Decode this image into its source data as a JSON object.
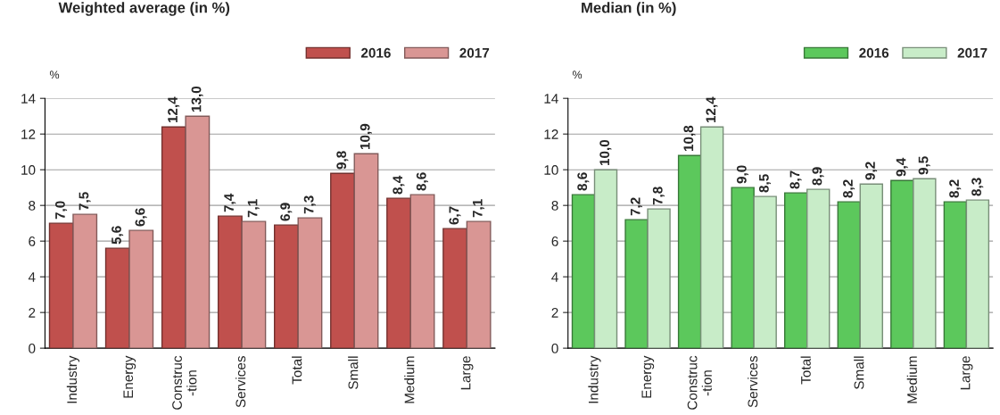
{
  "chart_data": [
    {
      "type": "bar",
      "title": "Weighted average (in %)",
      "ylabel": "%",
      "categories": [
        "Industry",
        "Energy",
        "Construc\n-tion",
        "Services",
        "Total",
        "Small",
        "Medium",
        "Large"
      ],
      "series": [
        {
          "name": "2016",
          "color": "#c0504d",
          "values": [
            7.0,
            5.6,
            12.4,
            7.4,
            6.9,
            9.8,
            8.4,
            6.7
          ],
          "value_labels": [
            "7,0",
            "5,6",
            "12,4",
            "7,4",
            "6,9",
            "9,8",
            "8,4",
            "6,7"
          ]
        },
        {
          "name": "2017",
          "color": "#d99694",
          "values": [
            7.5,
            6.6,
            13.0,
            7.1,
            7.3,
            10.9,
            8.6,
            7.1
          ],
          "value_labels": [
            "7,5",
            "6,6",
            "13,0",
            "7,1",
            "7,3",
            "10,9",
            "8,6",
            "7,1"
          ]
        }
      ],
      "ylim": [
        0,
        14
      ],
      "yticks": [
        0,
        2,
        4,
        6,
        8,
        10,
        12,
        14
      ],
      "grid": "y",
      "legend": "top right"
    },
    {
      "type": "bar",
      "title": "Median (in %)",
      "ylabel": "%",
      "categories": [
        "Industry",
        "Energy",
        "Construc\n-tion",
        "Services",
        "Total",
        "Small",
        "Medium",
        "Large"
      ],
      "series": [
        {
          "name": "2016",
          "color": "#5cc85c",
          "values": [
            8.6,
            7.2,
            10.8,
            9.0,
            8.7,
            8.2,
            9.4,
            8.2
          ],
          "value_labels": [
            "8,6",
            "7,2",
            "10,8",
            "9,0",
            "8,7",
            "8,2",
            "9,4",
            "8,2"
          ]
        },
        {
          "name": "2017",
          "color": "#c8ecc8",
          "values": [
            10.0,
            7.8,
            12.4,
            8.5,
            8.9,
            9.2,
            9.5,
            8.3
          ],
          "value_labels": [
            "10,0",
            "7,8",
            "12,4",
            "8,5",
            "8,9",
            "9,2",
            "9,5",
            "8,3"
          ]
        }
      ],
      "ylim": [
        0,
        14
      ],
      "yticks": [
        0,
        2,
        4,
        6,
        8,
        10,
        12,
        14
      ],
      "grid": "y",
      "legend": "top right"
    }
  ]
}
